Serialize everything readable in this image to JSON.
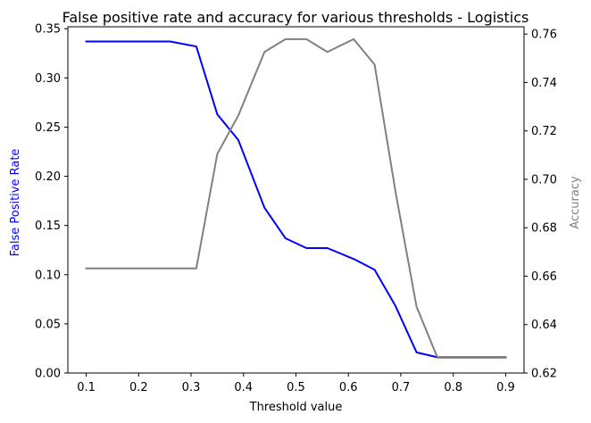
{
  "chart_data": {
    "type": "line",
    "title": "False positive rate and accuracy for various thresholds - Logistics",
    "xlabel": "Threshold value",
    "ylabel_left": "False Positive Rate",
    "ylabel_right": "Accuracy",
    "xlim": [
      0.065,
      0.935
    ],
    "ylim_left": [
      0.0,
      0.352
    ],
    "ylim_right": [
      0.62,
      0.763
    ],
    "x_ticks": [
      0.1,
      0.2,
      0.3,
      0.4,
      0.5,
      0.6,
      0.7,
      0.8,
      0.9
    ],
    "y_ticks_left": [
      0.0,
      0.05,
      0.1,
      0.15,
      0.2,
      0.25,
      0.3,
      0.35
    ],
    "y_ticks_right": [
      0.62,
      0.64,
      0.66,
      0.68,
      0.7,
      0.72,
      0.74,
      0.76
    ],
    "grid": false,
    "legend": false,
    "x": [
      0.1,
      0.14,
      0.18,
      0.22,
      0.26,
      0.31,
      0.35,
      0.39,
      0.44,
      0.48,
      0.52,
      0.56,
      0.61,
      0.65,
      0.69,
      0.73,
      0.77,
      0.81,
      0.86,
      0.9
    ],
    "series": [
      {
        "axis": "left",
        "color": "#0000ff",
        "values": [
          0.337,
          0.337,
          0.337,
          0.337,
          0.337,
          0.332,
          0.263,
          0.237,
          0.168,
          0.137,
          0.127,
          0.127,
          0.116,
          0.105,
          0.068,
          0.021,
          0.016,
          0.016,
          0.016,
          0.016
        ]
      },
      {
        "axis": "right",
        "color": "#808080",
        "values": [
          0.6632,
          0.6632,
          0.6632,
          0.6632,
          0.6632,
          0.6632,
          0.7105,
          0.7263,
          0.7526,
          0.7579,
          0.7579,
          0.7526,
          0.7579,
          0.7474,
          0.6947,
          0.6474,
          0.6263,
          0.6263,
          0.6263,
          0.6263
        ]
      }
    ]
  }
}
